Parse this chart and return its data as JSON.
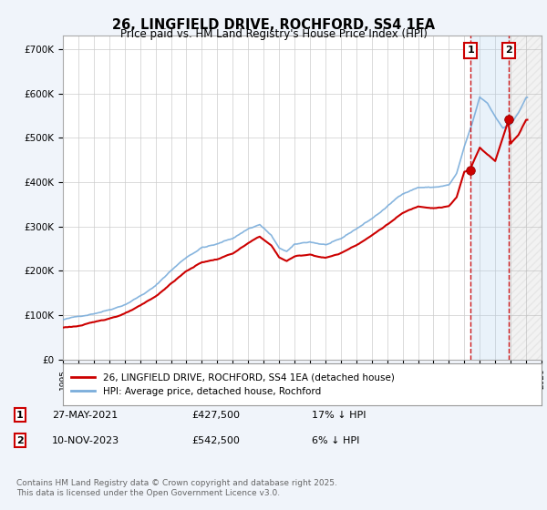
{
  "title": "26, LINGFIELD DRIVE, ROCHFORD, SS4 1EA",
  "subtitle": "Price paid vs. HM Land Registry's House Price Index (HPI)",
  "ylim": [
    0,
    730000
  ],
  "yticks": [
    0,
    100000,
    200000,
    300000,
    400000,
    500000,
    600000,
    700000
  ],
  "ytick_labels": [
    "£0",
    "£100K",
    "£200K",
    "£300K",
    "£400K",
    "£500K",
    "£600K",
    "£700K"
  ],
  "legend_red": "26, LINGFIELD DRIVE, ROCHFORD, SS4 1EA (detached house)",
  "legend_blue": "HPI: Average price, detached house, Rochford",
  "sale1_date": "27-MAY-2021",
  "sale1_price": "£427,500",
  "sale1_note": "17% ↓ HPI",
  "sale1_year": 2021.41,
  "sale1_value": 427500,
  "sale2_date": "10-NOV-2023",
  "sale2_price": "£542,500",
  "sale2_note": "6% ↓ HPI",
  "sale2_year": 2023.86,
  "sale2_value": 542500,
  "line_color_red": "#cc0000",
  "line_color_blue": "#7aaddb",
  "vline_color": "#cc0000",
  "marker_color": "#cc0000",
  "background_color": "#f0f4fa",
  "plot_bg": "#ffffff",
  "shade_between_color": "#ddeeff",
  "footer": "Contains HM Land Registry data © Crown copyright and database right 2025.\nThis data is licensed under the Open Government Licence v3.0.",
  "xlim_start": 1995,
  "xlim_end": 2026
}
